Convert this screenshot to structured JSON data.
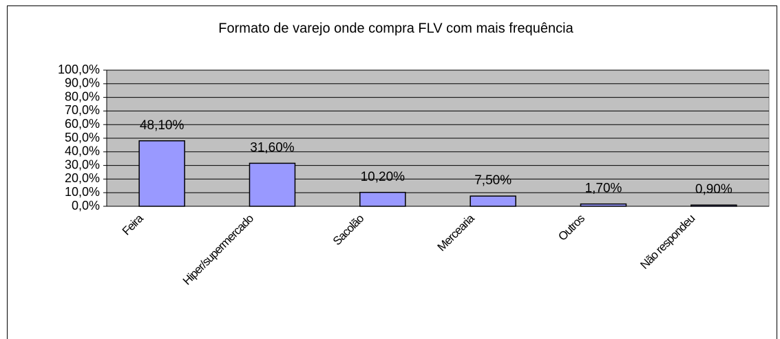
{
  "chart_data": {
    "type": "bar",
    "title": "Formato de varejo onde compra FLV com mais frequência",
    "categories": [
      "Feira",
      "Hiper/supermercado",
      "Sacolão",
      "Mercearia",
      "Outros",
      "Não respondeu"
    ],
    "values": [
      48.1,
      31.6,
      10.2,
      7.5,
      1.7,
      0.9
    ],
    "value_labels": [
      "48,10%",
      "31,60%",
      "10,20%",
      "7,50%",
      "1,70%",
      "0,90%"
    ],
    "color": "#9999ff",
    "ylim": [
      0,
      100
    ],
    "yticks": [
      {
        "value": 0,
        "label": "0,0%"
      },
      {
        "value": 10,
        "label": "10,0%"
      },
      {
        "value": 20,
        "label": "20,0%"
      },
      {
        "value": 30,
        "label": "30,0%"
      },
      {
        "value": 40,
        "label": "40,0%"
      },
      {
        "value": 50,
        "label": "50,0%"
      },
      {
        "value": 60,
        "label": "60,0%"
      },
      {
        "value": 70,
        "label": "70,0%"
      },
      {
        "value": 80,
        "label": "80,0%"
      },
      {
        "value": 90,
        "label": "90,0%"
      },
      {
        "value": 100,
        "label": "100,0%"
      }
    ],
    "grid": true
  }
}
